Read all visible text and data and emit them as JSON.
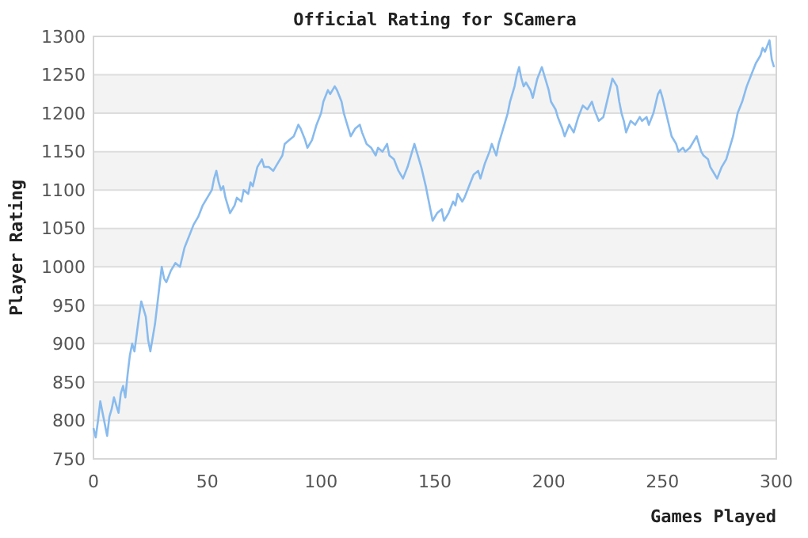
{
  "chart_data": {
    "type": "line",
    "title": "Official Rating for SCamera",
    "xlabel": "Games Played",
    "ylabel": "Player Rating",
    "xlim": [
      0,
      300
    ],
    "xticks": [
      0,
      50,
      100,
      150,
      200,
      250,
      300
    ],
    "ylim": [
      750,
      1300
    ],
    "yticks": [
      750,
      800,
      850,
      900,
      950,
      1000,
      1050,
      1100,
      1150,
      1200,
      1250,
      1300
    ],
    "grid": "y",
    "marker": "none",
    "line_style": "solid",
    "series": [
      {
        "color": "#88bbee",
        "x": [
          0,
          1,
          2,
          3,
          4,
          5,
          6,
          7,
          8,
          9,
          10,
          11,
          12,
          13,
          14,
          15,
          16,
          17,
          18,
          20,
          21,
          23,
          24,
          25,
          27,
          28,
          29,
          30,
          31,
          32,
          34,
          36,
          38,
          40,
          42,
          44,
          46,
          48,
          50,
          52,
          53,
          54,
          55,
          56,
          57,
          58,
          59,
          60,
          62,
          63,
          65,
          66,
          68,
          69,
          70,
          72,
          74,
          75,
          77,
          79,
          81,
          83,
          84,
          86,
          88,
          90,
          91,
          93,
          94,
          96,
          98,
          100,
          101,
          103,
          104,
          106,
          107,
          109,
          110,
          111,
          113,
          115,
          117,
          118,
          120,
          122,
          124,
          125,
          127,
          129,
          130,
          132,
          134,
          136,
          138,
          140,
          141,
          142,
          144,
          146,
          147,
          148,
          149,
          151,
          153,
          154,
          156,
          158,
          159,
          160,
          162,
          163,
          165,
          167,
          169,
          170,
          172,
          174,
          175,
          177,
          178,
          180,
          182,
          183,
          185,
          186,
          187,
          188,
          189,
          190,
          192,
          193,
          195,
          197,
          198,
          200,
          201,
          203,
          204,
          206,
          207,
          209,
          211,
          213,
          215,
          217,
          219,
          220,
          222,
          224,
          226,
          228,
          230,
          231,
          232,
          233,
          234,
          236,
          238,
          240,
          241,
          243,
          244,
          246,
          248,
          249,
          250,
          252,
          254,
          256,
          257,
          259,
          260,
          262,
          264,
          265,
          267,
          268,
          270,
          271,
          273,
          274,
          276,
          278,
          279,
          281,
          283,
          285,
          287,
          289,
          291,
          293,
          294,
          295,
          297,
          298,
          299
        ],
        "values": [
          790,
          778,
          800,
          825,
          810,
          795,
          780,
          805,
          815,
          830,
          820,
          810,
          835,
          845,
          830,
          860,
          885,
          900,
          890,
          935,
          955,
          935,
          905,
          890,
          925,
          950,
          975,
          1000,
          985,
          980,
          995,
          1005,
          1000,
          1025,
          1040,
          1055,
          1065,
          1080,
          1090,
          1100,
          1115,
          1125,
          1110,
          1100,
          1105,
          1090,
          1080,
          1070,
          1080,
          1090,
          1085,
          1100,
          1095,
          1110,
          1105,
          1130,
          1140,
          1130,
          1130,
          1125,
          1135,
          1145,
          1160,
          1165,
          1170,
          1185,
          1180,
          1165,
          1155,
          1165,
          1185,
          1200,
          1215,
          1230,
          1225,
          1235,
          1230,
          1215,
          1200,
          1190,
          1170,
          1180,
          1185,
          1175,
          1160,
          1155,
          1145,
          1155,
          1150,
          1160,
          1145,
          1140,
          1125,
          1115,
          1130,
          1150,
          1160,
          1150,
          1130,
          1105,
          1090,
          1075,
          1060,
          1070,
          1075,
          1060,
          1070,
          1085,
          1080,
          1095,
          1085,
          1090,
          1105,
          1120,
          1125,
          1115,
          1135,
          1150,
          1160,
          1145,
          1160,
          1180,
          1200,
          1215,
          1235,
          1250,
          1260,
          1245,
          1235,
          1240,
          1230,
          1220,
          1245,
          1260,
          1250,
          1230,
          1215,
          1205,
          1195,
          1180,
          1170,
          1185,
          1175,
          1195,
          1210,
          1205,
          1215,
          1205,
          1190,
          1195,
          1220,
          1245,
          1235,
          1215,
          1200,
          1190,
          1175,
          1190,
          1185,
          1195,
          1190,
          1195,
          1185,
          1200,
          1225,
          1230,
          1220,
          1195,
          1170,
          1160,
          1150,
          1155,
          1150,
          1155,
          1165,
          1170,
          1150,
          1145,
          1140,
          1130,
          1120,
          1115,
          1130,
          1140,
          1150,
          1170,
          1200,
          1215,
          1235,
          1250,
          1265,
          1275,
          1285,
          1280,
          1295,
          1270,
          1260
        ]
      }
    ]
  }
}
